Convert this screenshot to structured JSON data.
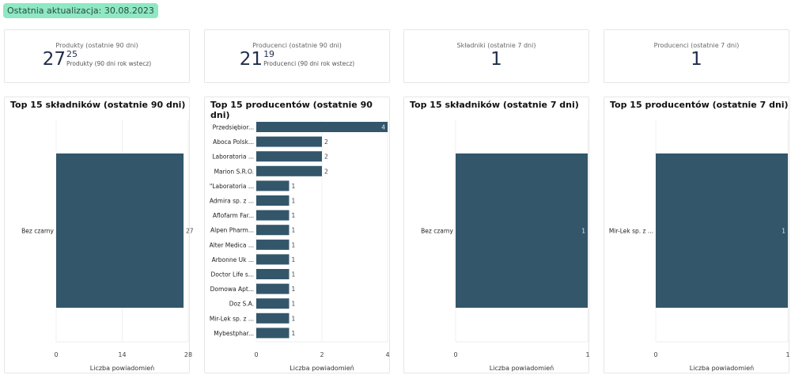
{
  "last_update": "Ostatnia aktualizacja: 30.08.2023",
  "kpis": [
    {
      "title": "Produkty (ostatnie 90 dni)",
      "value": "27",
      "compare": "25",
      "compare_label": "Produkty (90 dni rok wstecz)"
    },
    {
      "title": "Producenci (ostatnie 90 dni)",
      "value": "21",
      "compare": "19",
      "compare_label": "Producenci (90 dni rok wstecz)"
    },
    {
      "title": "Składniki (ostatnie 7 dni)",
      "value": "1"
    },
    {
      "title": "Producenci (ostatnie 7 dni)",
      "value": "1"
    }
  ],
  "colors": {
    "bar": "#33566b",
    "badge": "#8ee8c3"
  },
  "chart_data": [
    {
      "type": "bar",
      "orientation": "horizontal",
      "title": "Top 15 składników (ostatnie 90 dni)",
      "categories": [
        "Bez czarny"
      ],
      "values": [
        27
      ],
      "xlabel": "Liczba powiadomień",
      "xlim": [
        0,
        28
      ],
      "xticks": [
        0,
        14,
        28
      ]
    },
    {
      "type": "bar",
      "orientation": "horizontal",
      "title": "Top 15 producentów (ostatnie 90 dni)",
      "categories": [
        "Przedsiębior...",
        "Aboca Polsk...",
        "Laboratoria ...",
        "Marion S.R.O.",
        "\"Laboratoria ...",
        "Admira sp. z ...",
        "Aflofarm Far...",
        "Alpen Pharm...",
        "Alter Medica ...",
        "Arbonne Uk ...",
        "Doctor Life s...",
        "Domowa Apt...",
        "Doz S.A.",
        "Mir-Lek sp. z ...",
        "Mybestphar..."
      ],
      "values": [
        4,
        2,
        2,
        2,
        1,
        1,
        1,
        1,
        1,
        1,
        1,
        1,
        1,
        1,
        1
      ],
      "xlabel": "Liczba powiadomień",
      "xlim": [
        0,
        4
      ],
      "xticks": [
        0,
        2,
        4
      ]
    },
    {
      "type": "bar",
      "orientation": "horizontal",
      "title": "Top 15 składników (ostatnie 7 dni)",
      "categories": [
        "Bez czarny"
      ],
      "values": [
        1
      ],
      "xlabel": "Liczba powiadomień",
      "xlim": [
        0,
        1
      ],
      "xticks": [
        0,
        1
      ]
    },
    {
      "type": "bar",
      "orientation": "horizontal",
      "title": "Top 15 producentów (ostatnie 7 dni)",
      "categories": [
        "Mir-Lek sp. z ..."
      ],
      "values": [
        1
      ],
      "xlabel": "Liczba powiadomień",
      "xlim": [
        0,
        1
      ],
      "xticks": [
        0,
        1
      ]
    }
  ]
}
